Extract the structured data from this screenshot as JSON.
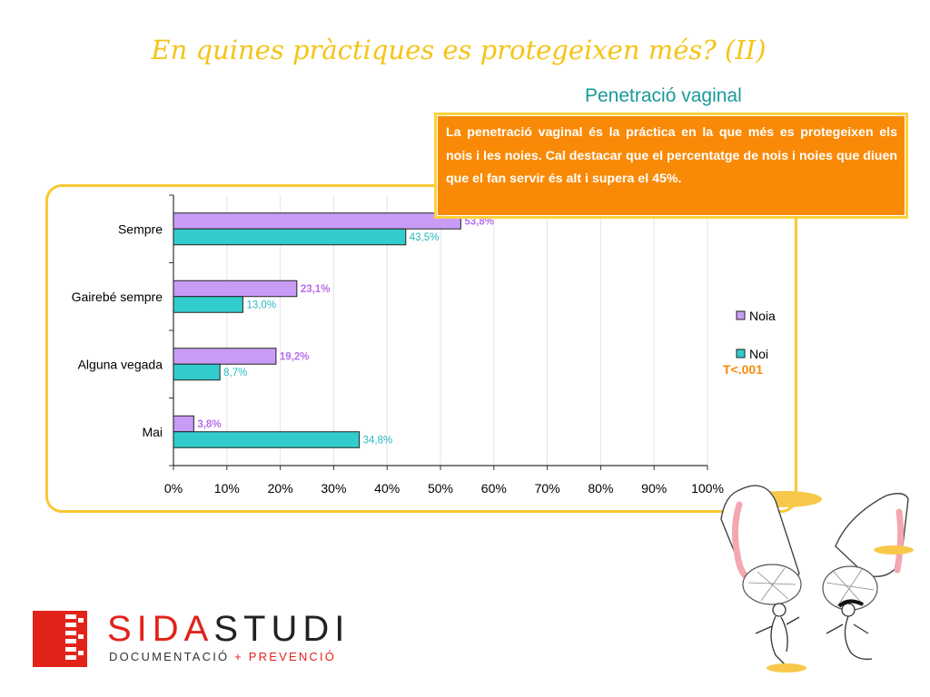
{
  "page": {
    "title": "En quines pràctiques es protegeixen més? (II)",
    "subtitle": "Penetració vaginal"
  },
  "callout": {
    "text": "La penetració vaginal és la práctica en la que més es protegeixen els nois i les noies. Cal destacar que el percentatge de nois i noies que diuen que el fan servir és alt i supera el  45%."
  },
  "colors": {
    "noia": "#c89cf6",
    "noi": "#33cccc",
    "noia_label": "#b66fe8",
    "noi_label": "#26b8bf",
    "accent": "#f5c417",
    "orange": "#f98a08"
  },
  "chart_data": {
    "type": "bar",
    "orientation": "horizontal",
    "categories": [
      "Sempre",
      "Gairebé sempre",
      "Alguna vegada",
      "Mai"
    ],
    "series": [
      {
        "name": "Noia",
        "values": [
          53.8,
          23.1,
          19.2,
          3.8
        ],
        "labels": [
          "53,8%",
          "23,1%",
          "19,2%",
          "3,8%"
        ]
      },
      {
        "name": "Noi",
        "values": [
          43.5,
          13.0,
          8.7,
          34.8
        ],
        "labels": [
          "43,5%",
          "13,0%",
          "8,7%",
          "34,8%"
        ]
      }
    ],
    "xlim": [
      0,
      100
    ],
    "xticks": [
      "0%",
      "10%",
      "20%",
      "30%",
      "40%",
      "50%",
      "60%",
      "70%",
      "80%",
      "90%",
      "100%"
    ],
    "grid": true,
    "legend": "right",
    "annotation": "T<.001"
  },
  "logo": {
    "part1": "SIDA",
    "part2": "STUDI",
    "tagline_a": "DOCUMENTACIÓ",
    "tagline_plus": "+",
    "tagline_b": "PREVENCIÓ"
  }
}
